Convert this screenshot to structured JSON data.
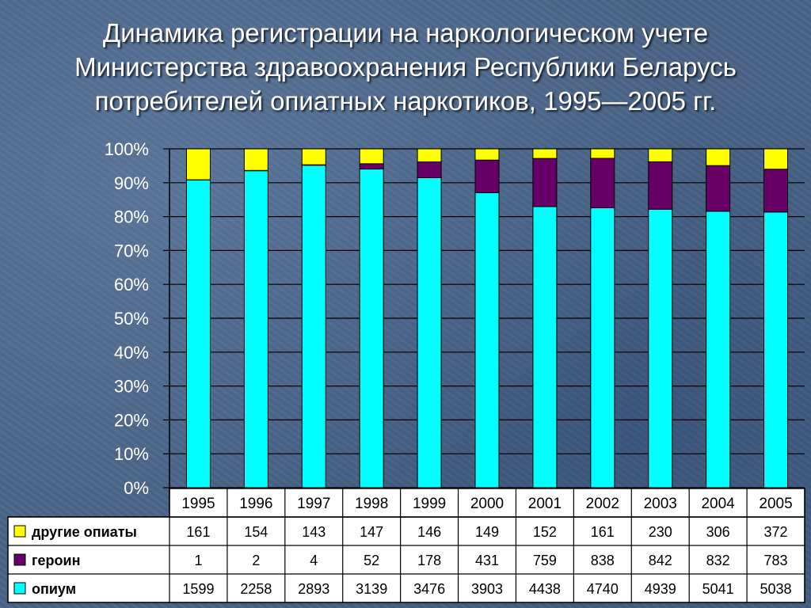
{
  "title": {
    "line1": "Динамика регистрации на наркологическом учете",
    "line2": "Министерства здравоохранения Республики Беларусь",
    "line3": "потребителей опиатных наркотиков, 1995—2005 гг."
  },
  "chart_data": {
    "type": "bar",
    "stacked": "percent",
    "title": "Динамика регистрации на наркологическом учете Министерства здравоохранения Республики Беларусь потребителей опиатных наркотиков, 1995—2005 гг.",
    "categories": [
      "1995",
      "1996",
      "1997",
      "1998",
      "1999",
      "2000",
      "2001",
      "2002",
      "2003",
      "2004",
      "2005"
    ],
    "yticks": [
      "0%",
      "10%",
      "20%",
      "30%",
      "40%",
      "50%",
      "60%",
      "70%",
      "80%",
      "90%",
      "100%"
    ],
    "ylim": [
      0,
      100
    ],
    "grid": true,
    "legend": "data-table-left",
    "series": [
      {
        "name": "опиум",
        "color": "#00ffff",
        "values": [
          1599,
          2258,
          2893,
          3139,
          3476,
          3903,
          4438,
          4740,
          4939,
          5041,
          5038
        ]
      },
      {
        "name": "героин",
        "color": "#660066",
        "values": [
          1,
          2,
          4,
          52,
          178,
          431,
          759,
          838,
          842,
          832,
          783
        ]
      },
      {
        "name": "другие опиаты",
        "color": "#ffff00",
        "values": [
          161,
          154,
          143,
          147,
          146,
          149,
          152,
          161,
          230,
          306,
          372
        ]
      }
    ]
  }
}
